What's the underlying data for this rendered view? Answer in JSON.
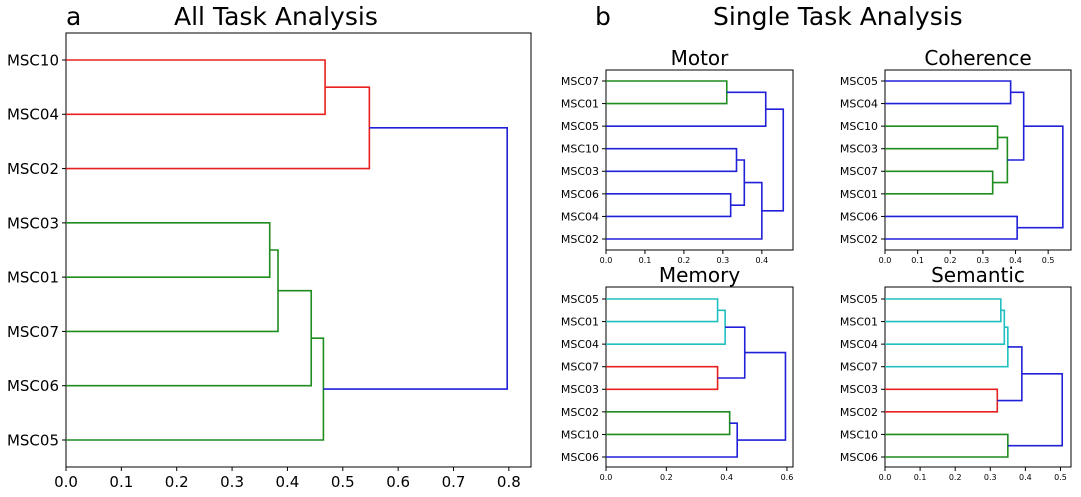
{
  "panel_a": {
    "letter": "a",
    "title": "All Task Analysis"
  },
  "panel_b": {
    "letter": "b",
    "title": "Single Task Analysis"
  },
  "colors": {
    "red": "#e8211f",
    "green": "#1e8c1e",
    "blue": "#2020d8",
    "cyan": "#20c0c0",
    "axis": "#000000"
  },
  "chart_data": [
    {
      "type": "dendrogram",
      "title": "",
      "leaves": [
        "MSC10",
        "MSC04",
        "MSC02",
        "MSC03",
        "MSC01",
        "MSC07",
        "MSC06",
        "MSC05"
      ],
      "xlim": [
        0,
        0.84
      ],
      "xticks": [
        "0.0",
        "0.1",
        "0.2",
        "0.3",
        "0.4",
        "0.5",
        "0.6",
        "0.7",
        "0.8"
      ],
      "merges": [
        {
          "a": "MSC10",
          "b": "MSC04",
          "height": 0.468,
          "color": "red"
        },
        {
          "a": "#0",
          "b": "MSC02",
          "height": 0.548,
          "color": "red"
        },
        {
          "a": "MSC03",
          "b": "MSC01",
          "height": 0.368,
          "color": "green"
        },
        {
          "a": "#2",
          "b": "MSC07",
          "height": 0.383,
          "color": "green"
        },
        {
          "a": "#3",
          "b": "MSC06",
          "height": 0.443,
          "color": "green"
        },
        {
          "a": "#4",
          "b": "MSC05",
          "height": 0.465,
          "color": "green"
        },
        {
          "a": "#1",
          "b": "#5",
          "height": 0.797,
          "color": "blue"
        }
      ]
    },
    {
      "type": "dendrogram",
      "title": "Motor",
      "leaves": [
        "MSC07",
        "MSC01",
        "MSC05",
        "MSC10",
        "MSC03",
        "MSC06",
        "MSC04",
        "MSC02"
      ],
      "xlim": [
        0,
        0.48
      ],
      "xticks": [
        "0.0",
        "0.1",
        "0.2",
        "0.3",
        "0.4"
      ],
      "merges": [
        {
          "a": "MSC07",
          "b": "MSC01",
          "height": 0.31,
          "color": "green"
        },
        {
          "a": "#0",
          "b": "MSC05",
          "height": 0.41,
          "color": "blue"
        },
        {
          "a": "MSC10",
          "b": "MSC03",
          "height": 0.335,
          "color": "blue"
        },
        {
          "a": "MSC06",
          "b": "MSC04",
          "height": 0.32,
          "color": "blue"
        },
        {
          "a": "#2",
          "b": "#3",
          "height": 0.355,
          "color": "blue"
        },
        {
          "a": "#4",
          "b": "MSC02",
          "height": 0.4,
          "color": "blue"
        },
        {
          "a": "#1",
          "b": "#5",
          "height": 0.455,
          "color": "blue"
        }
      ]
    },
    {
      "type": "dendrogram",
      "title": "Coherence",
      "leaves": [
        "MSC05",
        "MSC04",
        "MSC10",
        "MSC03",
        "MSC07",
        "MSC01",
        "MSC06",
        "MSC02"
      ],
      "xlim": [
        0,
        0.57
      ],
      "xticks": [
        "0.0",
        "0.1",
        "0.2",
        "0.3",
        "0.4",
        "0.5"
      ],
      "merges": [
        {
          "a": "MSC05",
          "b": "MSC04",
          "height": 0.385,
          "color": "blue"
        },
        {
          "a": "MSC10",
          "b": "MSC03",
          "height": 0.345,
          "color": "green"
        },
        {
          "a": "MSC07",
          "b": "MSC01",
          "height": 0.33,
          "color": "green"
        },
        {
          "a": "#1",
          "b": "#2",
          "height": 0.375,
          "color": "green"
        },
        {
          "a": "#0",
          "b": "#3",
          "height": 0.425,
          "color": "blue"
        },
        {
          "a": "MSC06",
          "b": "MSC02",
          "height": 0.405,
          "color": "blue"
        },
        {
          "a": "#4",
          "b": "#5",
          "height": 0.545,
          "color": "blue"
        }
      ]
    },
    {
      "type": "dendrogram",
      "title": "Memory",
      "leaves": [
        "MSC05",
        "MSC01",
        "MSC04",
        "MSC07",
        "MSC03",
        "MSC02",
        "MSC10",
        "MSC06"
      ],
      "xlim": [
        0,
        0.62
      ],
      "xticks": [
        "0.0",
        "0.2",
        "0.4",
        "0.6"
      ],
      "merges": [
        {
          "a": "MSC05",
          "b": "MSC01",
          "height": 0.37,
          "color": "cyan"
        },
        {
          "a": "#0",
          "b": "MSC04",
          "height": 0.395,
          "color": "cyan"
        },
        {
          "a": "MSC07",
          "b": "MSC03",
          "height": 0.37,
          "color": "red"
        },
        {
          "a": "#1",
          "b": "#2",
          "height": 0.46,
          "color": "blue"
        },
        {
          "a": "MSC02",
          "b": "MSC10",
          "height": 0.41,
          "color": "green"
        },
        {
          "a": "#4",
          "b": "MSC06",
          "height": 0.435,
          "color": "blue"
        },
        {
          "a": "#3",
          "b": "#5",
          "height": 0.595,
          "color": "blue"
        }
      ]
    },
    {
      "type": "dendrogram",
      "title": "Semantic",
      "leaves": [
        "MSC05",
        "MSC01",
        "MSC04",
        "MSC07",
        "MSC03",
        "MSC02",
        "MSC10",
        "MSC06"
      ],
      "xlim": [
        0,
        0.53
      ],
      "xticks": [
        "0.0",
        "0.1",
        "0.2",
        "0.3",
        "0.4",
        "0.5"
      ],
      "merges": [
        {
          "a": "MSC05",
          "b": "MSC01",
          "height": 0.33,
          "color": "cyan"
        },
        {
          "a": "#0",
          "b": "MSC04",
          "height": 0.34,
          "color": "cyan"
        },
        {
          "a": "#1",
          "b": "MSC07",
          "height": 0.35,
          "color": "cyan"
        },
        {
          "a": "MSC03",
          "b": "MSC02",
          "height": 0.32,
          "color": "red"
        },
        {
          "a": "#2",
          "b": "#3",
          "height": 0.39,
          "color": "blue"
        },
        {
          "a": "MSC10",
          "b": "MSC06",
          "height": 0.35,
          "color": "green"
        },
        {
          "a": "#4",
          "b": "#5",
          "height": 0.505,
          "color": "blue"
        }
      ]
    }
  ]
}
